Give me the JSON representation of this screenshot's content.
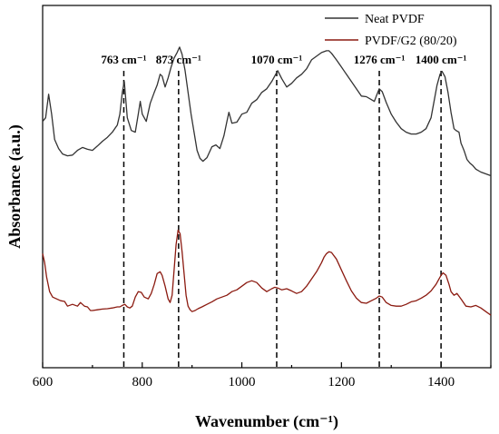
{
  "chart_data": {
    "type": "line",
    "xlabel": "Wavenumber (cm⁻¹)",
    "ylabel": "Absorbance (a.u.)",
    "xlim": [
      600,
      1500
    ],
    "x_ticks": [
      600,
      800,
      1000,
      1200,
      1400
    ],
    "y_ticks_shown": false,
    "legend_position": "top-right",
    "series": [
      {
        "name": "Neat PVDF",
        "color": "#333333",
        "x": [
          600,
          606,
          612,
          618,
          624,
          632,
          640,
          650,
          660,
          670,
          680,
          690,
          700,
          710,
          720,
          730,
          740,
          750,
          755,
          760,
          764,
          770,
          778,
          786,
          792,
          796,
          800,
          808,
          816,
          824,
          830,
          836,
          840,
          846,
          852,
          858,
          864,
          870,
          875,
          880,
          886,
          892,
          898,
          904,
          910,
          916,
          922,
          930,
          940,
          948,
          956,
          964,
          970,
          974,
          980,
          990,
          1000,
          1010,
          1020,
          1030,
          1040,
          1050,
          1060,
          1066,
          1072,
          1080,
          1090,
          1100,
          1110,
          1120,
          1130,
          1140,
          1150,
          1160,
          1170,
          1175,
          1180,
          1190,
          1200,
          1210,
          1220,
          1230,
          1240,
          1250,
          1260,
          1266,
          1270,
          1276,
          1282,
          1290,
          1300,
          1310,
          1320,
          1330,
          1340,
          1350,
          1360,
          1370,
          1380,
          1386,
          1392,
          1398,
          1402,
          1408,
          1414,
          1420,
          1426,
          1430,
          1436,
          1440,
          1446,
          1452,
          1458,
          1464,
          1470,
          1480,
          1490,
          1500
        ],
        "y": [
          0.68,
          0.69,
          0.755,
          0.7,
          0.63,
          0.605,
          0.59,
          0.585,
          0.587,
          0.6,
          0.608,
          0.603,
          0.6,
          0.612,
          0.625,
          0.636,
          0.65,
          0.67,
          0.7,
          0.76,
          0.79,
          0.69,
          0.655,
          0.65,
          0.7,
          0.735,
          0.7,
          0.68,
          0.73,
          0.76,
          0.78,
          0.81,
          0.805,
          0.775,
          0.8,
          0.83,
          0.855,
          0.87,
          0.885,
          0.865,
          0.82,
          0.76,
          0.7,
          0.65,
          0.6,
          0.578,
          0.57,
          0.58,
          0.61,
          0.615,
          0.605,
          0.64,
          0.68,
          0.705,
          0.675,
          0.678,
          0.7,
          0.705,
          0.73,
          0.74,
          0.76,
          0.77,
          0.79,
          0.805,
          0.82,
          0.798,
          0.775,
          0.785,
          0.8,
          0.81,
          0.825,
          0.85,
          0.86,
          0.87,
          0.875,
          0.875,
          0.868,
          0.85,
          0.83,
          0.81,
          0.79,
          0.77,
          0.75,
          0.748,
          0.74,
          0.735,
          0.75,
          0.77,
          0.762,
          0.732,
          0.7,
          0.678,
          0.66,
          0.65,
          0.645,
          0.645,
          0.65,
          0.66,
          0.69,
          0.735,
          0.78,
          0.81,
          0.818,
          0.803,
          0.76,
          0.705,
          0.66,
          0.655,
          0.65,
          0.62,
          0.6,
          0.575,
          0.565,
          0.558,
          0.548,
          0.54,
          0.535,
          0.53
        ]
      },
      {
        "name": "PVDF/G2 (80/20)",
        "color": "#8b1a10",
        "x": [
          600,
          604,
          608,
          614,
          620,
          628,
          636,
          644,
          650,
          660,
          670,
          676,
          684,
          690,
          696,
          700,
          710,
          720,
          730,
          740,
          750,
          755,
          760,
          765,
          770,
          775,
          780,
          786,
          792,
          798,
          804,
          812,
          818,
          824,
          830,
          836,
          840,
          846,
          852,
          856,
          860,
          864,
          868,
          872,
          876,
          880,
          884,
          888,
          892,
          896,
          900,
          906,
          912,
          920,
          930,
          940,
          950,
          960,
          970,
          980,
          990,
          1000,
          1010,
          1020,
          1030,
          1040,
          1050,
          1060,
          1066,
          1072,
          1080,
          1090,
          1100,
          1110,
          1120,
          1130,
          1140,
          1150,
          1160,
          1165,
          1170,
          1175,
          1180,
          1190,
          1200,
          1210,
          1220,
          1230,
          1240,
          1250,
          1260,
          1270,
          1276,
          1282,
          1290,
          1300,
          1310,
          1320,
          1330,
          1340,
          1350,
          1360,
          1370,
          1380,
          1390,
          1396,
          1400,
          1404,
          1410,
          1416,
          1420,
          1426,
          1432,
          1440,
          1450,
          1460,
          1470,
          1480,
          1490,
          1500
        ],
        "y": [
          0.315,
          0.29,
          0.25,
          0.21,
          0.195,
          0.19,
          0.185,
          0.183,
          0.17,
          0.175,
          0.17,
          0.18,
          0.17,
          0.168,
          0.158,
          0.158,
          0.16,
          0.162,
          0.163,
          0.165,
          0.168,
          0.168,
          0.172,
          0.175,
          0.168,
          0.165,
          0.17,
          0.195,
          0.21,
          0.208,
          0.195,
          0.19,
          0.205,
          0.23,
          0.26,
          0.265,
          0.255,
          0.225,
          0.19,
          0.18,
          0.2,
          0.27,
          0.34,
          0.38,
          0.37,
          0.32,
          0.26,
          0.2,
          0.17,
          0.16,
          0.155,
          0.158,
          0.163,
          0.168,
          0.175,
          0.182,
          0.19,
          0.195,
          0.2,
          0.21,
          0.215,
          0.225,
          0.235,
          0.24,
          0.235,
          0.22,
          0.21,
          0.218,
          0.222,
          0.22,
          0.215,
          0.218,
          0.212,
          0.205,
          0.21,
          0.225,
          0.245,
          0.265,
          0.29,
          0.305,
          0.315,
          0.32,
          0.318,
          0.3,
          0.27,
          0.24,
          0.212,
          0.192,
          0.18,
          0.178,
          0.185,
          0.192,
          0.198,
          0.195,
          0.18,
          0.172,
          0.17,
          0.17,
          0.175,
          0.182,
          0.185,
          0.192,
          0.2,
          0.212,
          0.23,
          0.245,
          0.255,
          0.262,
          0.255,
          0.23,
          0.21,
          0.2,
          0.205,
          0.19,
          0.17,
          0.168,
          0.172,
          0.165,
          0.155,
          0.145
        ]
      }
    ],
    "reference_lines": [
      {
        "x": 763,
        "label": "763 cm⁻¹"
      },
      {
        "x": 873,
        "label": "873 cm⁻¹"
      },
      {
        "x": 1070,
        "label": "1070 cm⁻¹"
      },
      {
        "x": 1276,
        "label": "1276 cm⁻¹"
      },
      {
        "x": 1400,
        "label": "1400 cm⁻¹"
      }
    ]
  }
}
